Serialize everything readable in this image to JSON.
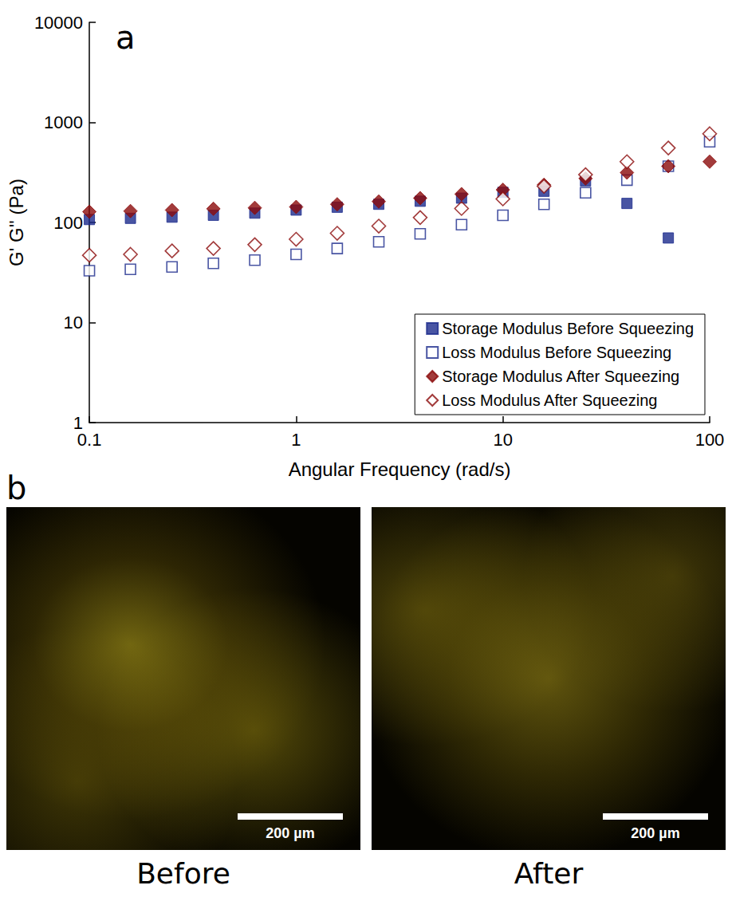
{
  "chart_data": {
    "type": "scatter",
    "panel_label": "a",
    "x_label": "Angular Frequency (rad/s)",
    "y_label": "G' G'' (Pa)",
    "log": true,
    "grid": false,
    "legend": "lower right",
    "xlim": [
      0.1,
      100
    ],
    "xticks": [
      0.1,
      1,
      10,
      100
    ],
    "ylim": [
      1,
      10000
    ],
    "yticks": [
      1,
      10,
      100,
      1000,
      10000
    ],
    "x": [
      0.1,
      0.158,
      0.251,
      0.398,
      0.631,
      1,
      1.58,
      2.51,
      3.98,
      6.31,
      10,
      15.8,
      25.1,
      39.8,
      63.1,
      100
    ],
    "series": [
      {
        "name": "Storage Modulus Before Squeezing",
        "color": "#1c2a8c",
        "marker": "square",
        "values": [
          107,
          110,
          113,
          118,
          124,
          133,
          142,
          152,
          163,
          175,
          200,
          205,
          260,
          155,
          70,
          null
        ]
      },
      {
        "name": "Loss Modulus Before Squeezing",
        "color": "#1c2a8c",
        "marker": "open square",
        "values": [
          33,
          34,
          36,
          39,
          42,
          48,
          55,
          64,
          77,
          95,
          118,
          152,
          198,
          265,
          365,
          640
        ]
      },
      {
        "name": "Storage Modulus After Squeezing",
        "color": "#8b0a0a",
        "marker": "diamond",
        "values": [
          128,
          130,
          133,
          137,
          140,
          143,
          152,
          162,
          175,
          192,
          212,
          238,
          275,
          315,
          365,
          405
        ]
      },
      {
        "name": "Loss Modulus After Squeezing",
        "color": "#8b0a0a",
        "marker": "open diamond",
        "values": [
          47,
          48,
          52,
          55,
          60,
          68,
          78,
          92,
          112,
          138,
          172,
          230,
          300,
          405,
          555,
          770
        ]
      }
    ]
  },
  "panel_b": {
    "panel_label": "b",
    "images": [
      {
        "caption": "Before",
        "scale_bar": "200 µm"
      },
      {
        "caption": "After",
        "scale_bar": "200 µm"
      }
    ]
  }
}
